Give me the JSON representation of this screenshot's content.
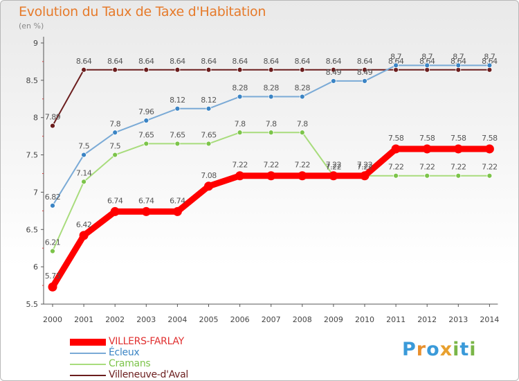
{
  "header": {
    "title": "Evolution du Taux de Taxe d'Habitation",
    "subtitle": "(en %)"
  },
  "colors": {
    "title": "#e67a2a",
    "axis": "#555555"
  },
  "logo": {
    "letters": [
      "P",
      "r",
      "o",
      "x",
      "i",
      "t",
      "i"
    ],
    "colors": [
      "#3a9ad9",
      "#e8902e",
      "#3a9ad9",
      "#e8a02e",
      "#7ab648",
      "#3a9ad9",
      "#7ab648"
    ]
  },
  "chart_data": {
    "type": "line",
    "title": "Evolution du Taux de Taxe d'Habitation",
    "subtitle": "(en %)",
    "xlabel": "",
    "ylabel": "",
    "x": [
      "2000",
      "2001",
      "2002",
      "2003",
      "2004",
      "2005",
      "2006",
      "2007",
      "2008",
      "2009",
      "2010",
      "2011",
      "2012",
      "2013",
      "2014"
    ],
    "y_ticks": [
      "5.5",
      "6",
      "6.5",
      "7",
      "7.5",
      "8",
      "8.5",
      "9"
    ],
    "ylim": [
      5.5,
      9
    ],
    "grid": false,
    "legend_position": "bottom-left",
    "series": [
      {
        "name": "Villeneuve-d'Aval",
        "color": "#6b1d1d",
        "dot": "#6b1d1d",
        "width": 2,
        "values": [
          7.89,
          8.64,
          8.64,
          8.64,
          8.64,
          8.64,
          8.64,
          8.64,
          8.64,
          8.64,
          8.64,
          8.64,
          8.64,
          8.64,
          8.64
        ],
        "labels": [
          "7.89",
          "8.64",
          "8.64",
          "8.64",
          "8.64",
          "8.64",
          "8.64",
          "8.64",
          "8.64",
          "8.64",
          "8.64",
          "8.64",
          "8.64",
          "8.64",
          "8.64"
        ]
      },
      {
        "name": "Écleux",
        "color": "#7aaad6",
        "dot": "#3b84c4",
        "width": 2,
        "values": [
          6.82,
          7.5,
          7.8,
          7.96,
          8.12,
          8.12,
          8.28,
          8.28,
          8.28,
          8.49,
          8.49,
          8.7,
          8.7,
          8.7,
          8.7
        ],
        "labels": [
          "6.82",
          "7.5",
          "7.8",
          "7.96",
          "8.12",
          "8.12",
          "8.28",
          "8.28",
          "8.28",
          "8.49",
          "8.49",
          "8.7",
          "8.7",
          "8.7",
          "8.7"
        ]
      },
      {
        "name": "Cramans",
        "color": "#a8dc7c",
        "dot": "#7cc44a",
        "width": 2,
        "values": [
          6.21,
          7.14,
          7.5,
          7.65,
          7.65,
          7.65,
          7.8,
          7.8,
          7.8,
          7.22,
          7.22,
          7.22,
          7.22,
          7.22,
          7.22
        ],
        "labels": [
          "6.21",
          "7.14",
          "7.5",
          "7.65",
          "7.65",
          "7.65",
          "7.8",
          "7.8",
          "7.8",
          "7.22",
          "7.22",
          "7.22",
          "7.22",
          "7.22",
          "7.22"
        ]
      },
      {
        "name": "VILLERS-FARLAY",
        "color": "#ff0000",
        "dot": "#ff0000",
        "width": 9,
        "values": [
          5.73,
          6.42,
          6.74,
          6.74,
          6.74,
          7.08,
          7.22,
          7.22,
          7.22,
          7.22,
          7.22,
          7.58,
          7.58,
          7.58,
          7.58
        ],
        "labels": [
          "5.73",
          "6.42",
          "6.74",
          "6.74",
          "6.74",
          "7.08",
          "7.22",
          "7.22",
          "7.22",
          "7.22",
          "7.22",
          "7.58",
          "7.58",
          "7.58",
          "7.58"
        ]
      }
    ],
    "legend": [
      "VILLERS-FARLAY",
      "Écleux",
      "Cramans",
      "Villeneuve-d'Aval"
    ]
  }
}
